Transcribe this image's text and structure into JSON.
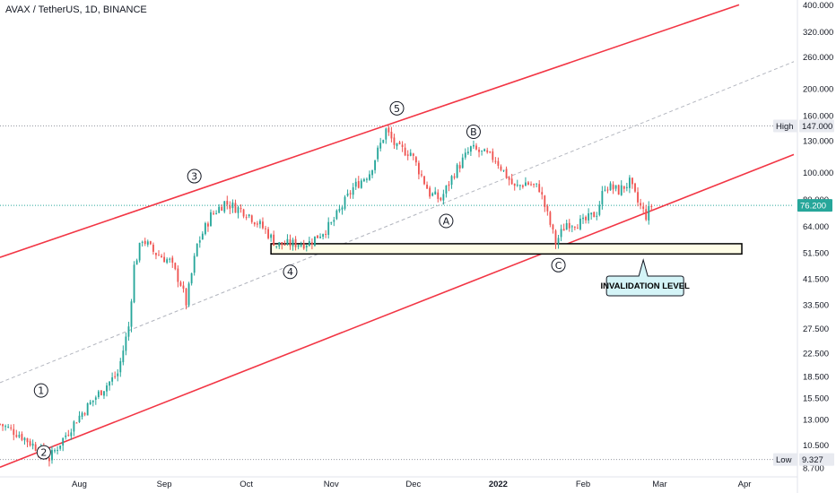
{
  "header": {
    "title": "AVAX / TetherUS, 1D, BINANCE"
  },
  "colors": {
    "up": "#26a69a",
    "down": "#ef5350",
    "channel": "#f23645",
    "midline": "#b2b5be",
    "zone_fill": "#fffde7",
    "callout_fill": "#d4f4f7",
    "last_price_bg": "#26a69a"
  },
  "markers": {
    "high_label": "High",
    "high_value": "147.000",
    "low_label": "Low",
    "low_value": "9.327",
    "last_value": "76.200"
  },
  "callout": {
    "text": "INVALIDATION LEVEL"
  },
  "waves": [
    {
      "label": "1",
      "date": "2021-07-18",
      "price": 16.5
    },
    {
      "label": "2",
      "date": "2021-07-19",
      "price": 9.9
    },
    {
      "label": "3",
      "date": "2021-09-12",
      "price": 97.0
    },
    {
      "label": "4",
      "date": "2021-10-17",
      "price": 44.0
    },
    {
      "label": "5",
      "date": "2021-11-25",
      "price": 170.0
    },
    {
      "label": "A",
      "date": "2021-12-13",
      "price": 67.0
    },
    {
      "label": "B",
      "date": "2021-12-23",
      "price": 140.0
    },
    {
      "label": "C",
      "date": "2022-01-23",
      "price": 46.5
    }
  ],
  "chart_data": {
    "type": "candlestick",
    "title": "AVAX / TetherUS, 1D, BINANCE",
    "y_scale": "log",
    "ylim": [
      8.2,
      410
    ],
    "xlim": [
      "2021-07-03",
      "2022-04-19"
    ],
    "x_ticks": [
      {
        "label": "Aug",
        "date": "2021-08-01"
      },
      {
        "label": "Sep",
        "date": "2021-09-01"
      },
      {
        "label": "Oct",
        "date": "2021-10-01"
      },
      {
        "label": "Nov",
        "date": "2021-11-01"
      },
      {
        "label": "Dec",
        "date": "2021-12-01"
      },
      {
        "label": "2022",
        "date": "2022-01-01"
      },
      {
        "label": "Feb",
        "date": "2022-02-01"
      },
      {
        "label": "Mar",
        "date": "2022-03-01"
      },
      {
        "label": "Apr",
        "date": "2022-04-01"
      }
    ],
    "y_ticks": [
      "400.000",
      "320.000",
      "260.000",
      "200.000",
      "160.000",
      "130.000",
      "100.000",
      "80.000",
      "64.000",
      "51.500",
      "41.500",
      "33.500",
      "27.500",
      "22.500",
      "18.500",
      "15.500",
      "13.000",
      "10.500",
      "8.700"
    ],
    "price_path": [
      [
        "2021-07-03",
        12.5
      ],
      [
        "2021-07-10",
        11.5
      ],
      [
        "2021-07-18",
        10.0
      ],
      [
        "2021-07-21",
        9.4
      ],
      [
        "2021-07-31",
        13.0
      ],
      [
        "2021-08-09",
        16.5
      ],
      [
        "2021-08-15",
        19.0
      ],
      [
        "2021-08-19",
        28.0
      ],
      [
        "2021-08-21",
        46.0
      ],
      [
        "2021-08-24",
        58.0
      ],
      [
        "2021-08-28",
        52.0
      ],
      [
        "2021-09-03",
        48.0
      ],
      [
        "2021-09-07",
        40.0
      ],
      [
        "2021-09-09",
        34.0
      ],
      [
        "2021-09-13",
        55.0
      ],
      [
        "2021-09-18",
        70.0
      ],
      [
        "2021-09-23",
        78.0
      ],
      [
        "2021-10-01",
        72.0
      ],
      [
        "2021-10-08",
        62.0
      ],
      [
        "2021-10-12",
        55.0
      ],
      [
        "2021-10-24",
        56.0
      ],
      [
        "2021-11-01",
        65.0
      ],
      [
        "2021-11-09",
        88.0
      ],
      [
        "2021-11-15",
        100.0
      ],
      [
        "2021-11-21",
        142.0
      ],
      [
        "2021-11-25",
        122.0
      ],
      [
        "2021-11-30",
        118.0
      ],
      [
        "2021-12-03",
        102.0
      ],
      [
        "2021-12-07",
        84.0
      ],
      [
        "2021-12-11",
        80.0
      ],
      [
        "2021-12-16",
        100.0
      ],
      [
        "2021-12-22",
        122.0
      ],
      [
        "2021-12-31",
        112.0
      ],
      [
        "2022-01-07",
        88.0
      ],
      [
        "2022-01-11",
        92.0
      ],
      [
        "2022-01-16",
        88.0
      ],
      [
        "2022-01-22",
        56.0
      ],
      [
        "2022-01-26",
        66.0
      ],
      [
        "2022-02-01",
        66.0
      ],
      [
        "2022-02-06",
        72.0
      ],
      [
        "2022-02-09",
        90.0
      ],
      [
        "2022-02-14",
        86.0
      ],
      [
        "2022-02-18",
        92.0
      ],
      [
        "2022-02-21",
        78.0
      ],
      [
        "2022-02-24",
        70.0
      ],
      [
        "2022-02-26",
        76.2
      ]
    ],
    "high": {
      "value": 147.0,
      "date": "2021-11-21"
    },
    "low": {
      "value": 9.327,
      "date": "2021-07-20"
    },
    "last_price": 76.2,
    "channel": {
      "upper": [
        [
          "2021-07-03",
          49.6
        ],
        [
          "2022-03-30",
          400.0
        ]
      ],
      "middle": [
        [
          "2021-07-03",
          17.6
        ],
        [
          "2022-04-19",
          250.0
        ]
      ],
      "lower": [
        [
          "2021-07-03",
          8.75
        ],
        [
          "2022-04-19",
          116.0
        ]
      ]
    },
    "zone": {
      "from": "2021-10-10",
      "to": "2022-03-31",
      "low": 51.0,
      "high": 55.5
    },
    "callout": {
      "text": "INVALIDATION LEVEL",
      "date": "2022-02-23",
      "price": 50.0
    }
  }
}
